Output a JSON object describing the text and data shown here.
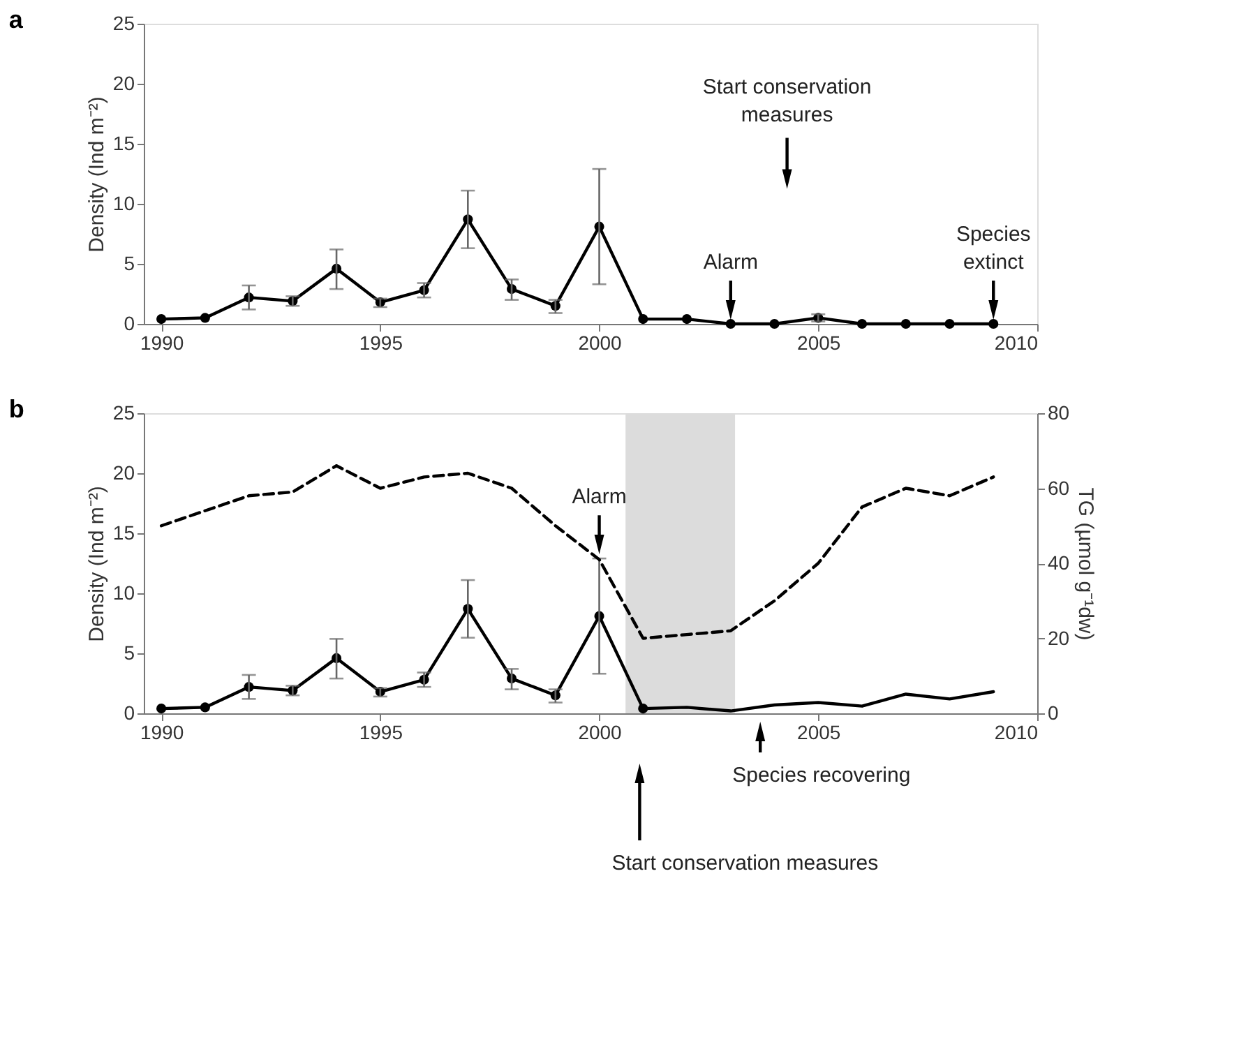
{
  "chart_data": [
    {
      "type": "line",
      "title": "a",
      "ylabel": "Density (Ind m⁻²)",
      "xlim": [
        1989.6,
        2010
      ],
      "xticks": [
        1990,
        1995,
        2000,
        2005,
        2010
      ],
      "ylim": [
        0,
        25
      ],
      "yticks": [
        0,
        5,
        10,
        15,
        20,
        25
      ],
      "marker": "circle",
      "line_style": "solid",
      "series": [
        {
          "color": "#000000",
          "x": [
            1990,
            1991,
            1992,
            1993,
            1994,
            1995,
            1996,
            1997,
            1998,
            1999,
            2000,
            2001,
            2002,
            2003,
            2004,
            2005,
            2006,
            2007,
            2008,
            2009
          ],
          "values": [
            0.4,
            0.5,
            2.2,
            1.9,
            4.6,
            1.8,
            2.8,
            8.7,
            2.9,
            1.5,
            8.1,
            0.4,
            0.4,
            0,
            0,
            0.5,
            0,
            0,
            0,
            0
          ],
          "errors": [
            null,
            null,
            [
              1.2,
              3.2
            ],
            [
              1.5,
              2.3
            ],
            [
              2.9,
              6.2
            ],
            [
              1.4,
              2.1
            ],
            [
              2.2,
              3.4
            ],
            [
              6.3,
              11.1
            ],
            [
              2.0,
              3.7
            ],
            [
              0.9,
              2.0
            ],
            [
              3.3,
              12.9
            ],
            null,
            null,
            null,
            null,
            [
              0.2,
              0.8
            ],
            null,
            null,
            null,
            null
          ]
        }
      ],
      "annotations": [
        {
          "text": "Alarm",
          "x": 2003,
          "y": 0
        },
        "Start conservation\nmeasures",
        {
          "text": "Species\nextinct",
          "x": 2009,
          "y": 0
        }
      ]
    },
    {
      "type": "line",
      "title": "b",
      "ylabel": "Density (Ind m⁻²)",
      "y2label": "TG (µmol g⁻¹dw)",
      "xlim": [
        1989.6,
        2010
      ],
      "xticks": [
        1990,
        1995,
        2000,
        2005,
        2010
      ],
      "ylim": [
        0,
        25
      ],
      "yticks": [
        0,
        5,
        10,
        15,
        20,
        25
      ],
      "y2lim": [
        0,
        80
      ],
      "y2ticks": [
        0,
        20,
        40,
        60,
        80
      ],
      "series": [
        {
          "color": "#000000",
          "marker": "circle",
          "line_style": "solid",
          "x": [
            1990,
            1991,
            1992,
            1993,
            1994,
            1995,
            1996,
            1997,
            1998,
            1999,
            2000,
            2001
          ],
          "values": [
            0.4,
            0.5,
            2.2,
            1.9,
            4.6,
            1.8,
            2.8,
            8.7,
            2.9,
            1.5,
            8.1,
            0.4
          ],
          "errors": [
            null,
            null,
            [
              1.2,
              3.2
            ],
            [
              1.5,
              2.3
            ],
            [
              2.9,
              6.2
            ],
            [
              1.4,
              2.1
            ],
            [
              2.2,
              3.4
            ],
            [
              6.3,
              11.1
            ],
            [
              2.0,
              3.7
            ],
            [
              0.9,
              2.0
            ],
            [
              3.3,
              12.9
            ],
            null
          ]
        },
        {
          "color": "#000000",
          "marker": "none",
          "line_style": "solid",
          "x": [
            2001,
            2002,
            2003,
            2004,
            2005,
            2006,
            2007,
            2008,
            2009
          ],
          "values": [
            0.4,
            0.5,
            0.2,
            0.7,
            0.9,
            0.6,
            1.6,
            1.2,
            1.8
          ]
        },
        {
          "color": "#000000",
          "marker": "none",
          "line_style": "dashed",
          "axis": "y2",
          "x": [
            1990,
            1991,
            1992,
            1993,
            1994,
            1995,
            1996,
            1997,
            1998,
            1999,
            2000,
            2001,
            2002,
            2003,
            2004,
            2005,
            2006,
            2007,
            2008,
            2009
          ],
          "values": [
            50,
            54,
            58,
            59,
            66,
            60,
            63,
            64,
            60,
            50,
            41,
            20,
            21,
            22,
            30,
            40,
            55,
            60,
            58,
            63
          ]
        }
      ],
      "bands": [
        {
          "axis": "x",
          "from": 2000.6,
          "to": 2003.1,
          "color": "#dcdcdc"
        }
      ],
      "annotations": [
        {
          "text": "Alarm",
          "x": 2000,
          "y": 12.9
        },
        "Start conservation measures",
        "Species recovering"
      ]
    }
  ]
}
